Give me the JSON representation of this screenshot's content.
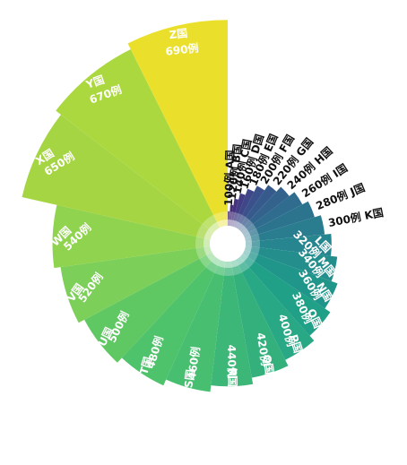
{
  "chart_data": {
    "type": "nightingale-rose",
    "title": "",
    "slices": [
      {
        "value_label": "100例",
        "category_label": "A国",
        "value": 100,
        "color": "#482475"
      },
      {
        "value_label": "120例",
        "category_label": "B国",
        "value": 120,
        "color": "#472c7a"
      },
      {
        "value_label": "140例",
        "category_label": "C国",
        "value": 140,
        "color": "#46337f"
      },
      {
        "value_label": "160例",
        "category_label": "D国",
        "value": 160,
        "color": "#423d84"
      },
      {
        "value_label": "180例",
        "category_label": "E国",
        "value": 180,
        "color": "#3f4788"
      },
      {
        "value_label": "200例",
        "category_label": "F国",
        "value": 200,
        "color": "#3b518b"
      },
      {
        "value_label": "220例",
        "category_label": "G国",
        "value": 220,
        "color": "#375a8c"
      },
      {
        "value_label": "240例",
        "category_label": "H国",
        "value": 240,
        "color": "#33638d"
      },
      {
        "value_label": "260例",
        "category_label": "I国",
        "value": 260,
        "color": "#2f6c8e"
      },
      {
        "value_label": "280例",
        "category_label": "J国",
        "value": 280,
        "color": "#2c748e"
      },
      {
        "value_label": "300例",
        "category_label": "K国",
        "value": 300,
        "color": "#297d8e"
      },
      {
        "value_label": "320例",
        "category_label": "L国",
        "value": 320,
        "color": "#26858e"
      },
      {
        "value_label": "340例",
        "category_label": "M国",
        "value": 340,
        "color": "#238e8c"
      },
      {
        "value_label": "360例",
        "category_label": "N国",
        "value": 360,
        "color": "#20968b"
      },
      {
        "value_label": "380例",
        "category_label": "O国",
        "value": 380,
        "color": "#20a087"
      },
      {
        "value_label": "400例",
        "category_label": "P国",
        "value": 400,
        "color": "#28a884"
      },
      {
        "value_label": "420例",
        "category_label": "Q国",
        "value": 420,
        "color": "#33b07c"
      },
      {
        "value_label": "440例",
        "category_label": "R国",
        "value": 440,
        "color": "#3cb777"
      },
      {
        "value_label": "460例",
        "category_label": "S国",
        "value": 460,
        "color": "#48bf70"
      },
      {
        "value_label": "480例",
        "category_label": "T国",
        "value": 480,
        "color": "#4fc26c"
      },
      {
        "value_label": "500例",
        "category_label": "U国",
        "value": 500,
        "color": "#60c863"
      },
      {
        "value_label": "520例",
        "category_label": "V国",
        "value": 520,
        "color": "#7ccf58"
      },
      {
        "value_label": "540例",
        "category_label": "W国",
        "value": 540,
        "color": "#90d34e"
      },
      {
        "value_label": "650例",
        "category_label": "X国",
        "value": 650,
        "color": "#a6d544"
      },
      {
        "value_label": "670例",
        "category_label": "Y国",
        "value": 670,
        "color": "#abd83e"
      },
      {
        "value_label": "690例",
        "category_label": "Z国",
        "value": 690,
        "color": "#eae02c"
      }
    ]
  }
}
